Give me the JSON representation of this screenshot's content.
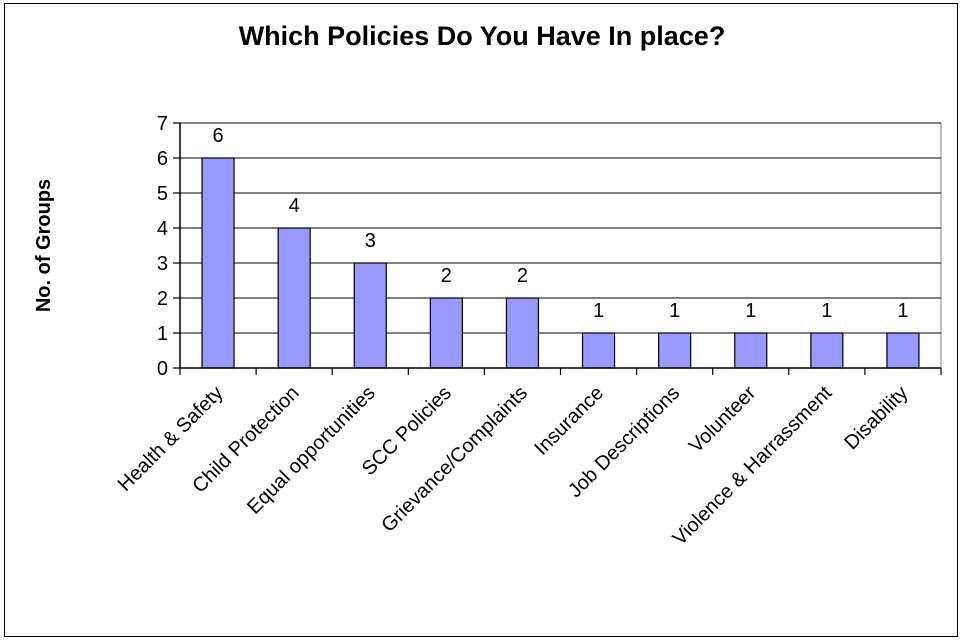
{
  "chart_data": {
    "type": "bar",
    "title": "Which Policies Do You Have In place?",
    "xlabel": "",
    "ylabel": "No. of Groups",
    "categories": [
      "Health & Safety",
      "Child Protection",
      "Equal opportunities",
      "SCC Policies",
      "Grievance/Complaints",
      "Insurance",
      "Job Descriptions",
      "Volunteer",
      "Violence & Harrassment",
      "Disability"
    ],
    "values": [
      6,
      4,
      3,
      2,
      2,
      1,
      1,
      1,
      1,
      1
    ],
    "ylim": [
      0,
      7
    ],
    "yticks": [
      0,
      1,
      2,
      3,
      4,
      5,
      6,
      7
    ],
    "grid": true,
    "legend": "none",
    "bar_color": "#9999ff",
    "data_labels": true
  }
}
